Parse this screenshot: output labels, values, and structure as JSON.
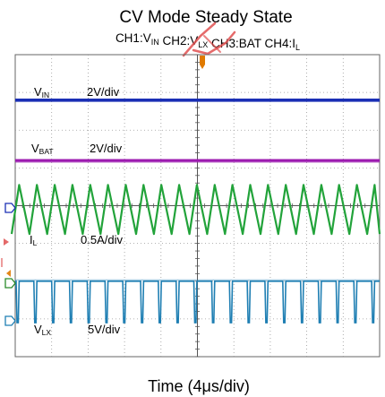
{
  "chart_data": {
    "type": "line",
    "title": "CV Mode Steady State",
    "channel_header": {
      "ch1": [
        "CH1:V",
        "IN"
      ],
      "ch2": [
        "CH2:V",
        "LX"
      ],
      "ch3": [
        "CH3:BAT"
      ],
      "ch4": [
        "CH4:I",
        "L"
      ]
    },
    "xlabel": "Time (4μs/div)",
    "grid": true,
    "divisions": {
      "x": 10,
      "y": 8
    },
    "traces": [
      {
        "channel": "CH1",
        "label": [
          "V",
          "IN"
        ],
        "scale": "2V/div",
        "color": "#1a2fb5",
        "shape": "flat",
        "level_div": 1.2
      },
      {
        "channel": "CH3",
        "label": [
          "V",
          "BAT"
        ],
        "scale": "2V/div",
        "color": "#9c1bb0",
        "shape": "flat",
        "level_div": 2.8
      },
      {
        "channel": "CH4",
        "label": [
          "I",
          "L"
        ],
        "scale": "0.5A/div",
        "color": "#22a33a",
        "shape": "triangle",
        "cycles_per_div": 2.05
      },
      {
        "channel": "CH2",
        "label": [
          "V",
          "LX"
        ],
        "scale": "5V/div",
        "color": "#1f7fb3",
        "shape": "pulse",
        "cycles_per_div": 2.05
      }
    ],
    "markers": {
      "trigger": "#e07a00",
      "ground_refs": [
        "#1a2fb5",
        "#2a8a2a",
        "#1f7fb3"
      ]
    },
    "colors": {
      "grid": "#9a9a9a",
      "frame": "#666666",
      "overlay": "#e05050"
    }
  }
}
